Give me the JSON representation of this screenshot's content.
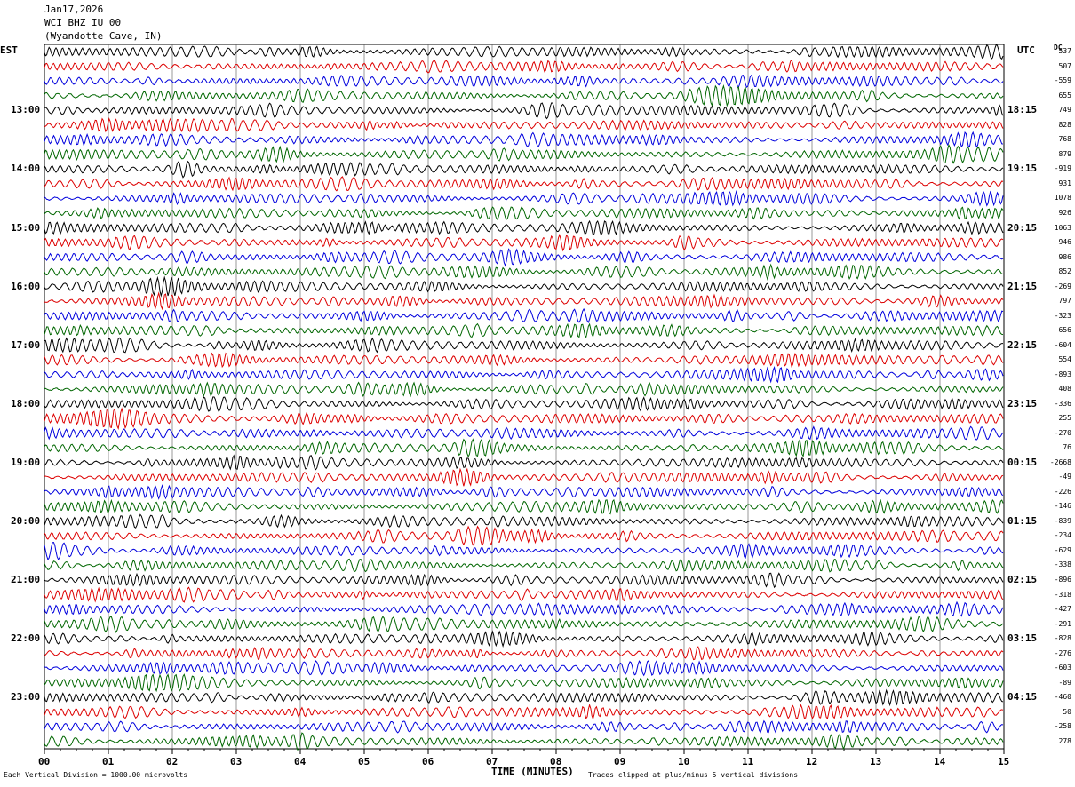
{
  "header": {
    "date": "Jan17,2026",
    "station": "WCI BHZ IU 00",
    "location": "(Wyandotte Cave, IN)"
  },
  "corners": {
    "left_tz": "EST",
    "right_tz": "UTC",
    "dc_label": "DC"
  },
  "chart_data": {
    "type": "line",
    "title": "Jan17,2026 WCI BHZ IU 00 (Wyandotte Cave, IN)",
    "xlabel": "TIME (MINUTES)",
    "xlim": [
      0,
      15
    ],
    "x_ticks": [
      "00",
      "01",
      "02",
      "03",
      "04",
      "05",
      "06",
      "07",
      "08",
      "09",
      "10",
      "11",
      "12",
      "13",
      "14",
      "15"
    ],
    "trace_colors": [
      "#000000",
      "#dd0000",
      "#0000dd",
      "#006600"
    ],
    "trace_count": 48,
    "left_hour_labels": [
      "13:00",
      "14:00",
      "15:00",
      "16:00",
      "17:00",
      "18:00",
      "19:00",
      "20:00",
      "21:00",
      "22:00",
      "23:00"
    ],
    "right_hour_labels": [
      "18:15",
      "19:15",
      "20:15",
      "21:15",
      "22:15",
      "23:15",
      "00:15",
      "01:15",
      "02:15",
      "03:15",
      "04:15"
    ],
    "dc_offsets": [
      "537",
      "507",
      "-559",
      "655",
      "749",
      "828",
      "768",
      "879",
      "-919",
      "931",
      "1078",
      "926",
      "1063",
      "946",
      "986",
      "852",
      "-269",
      "797",
      "-323",
      "656",
      "-604",
      "554",
      "-893",
      "408",
      "-336",
      "255",
      "-270",
      "76",
      "-2668",
      "-49",
      "-226",
      "-146",
      "-839",
      "-234",
      "-629",
      "-338",
      "-896",
      "-318",
      "-427",
      "-291",
      "-828",
      "-276",
      "-603",
      "-89",
      "-460",
      "50",
      "-258",
      "278"
    ],
    "grid": true
  },
  "footer": {
    "scale_note": "Each Vertical Division = 1000.00 microvolts",
    "clip_note": "Traces clipped at plus/minus 5 vertical divisions"
  }
}
